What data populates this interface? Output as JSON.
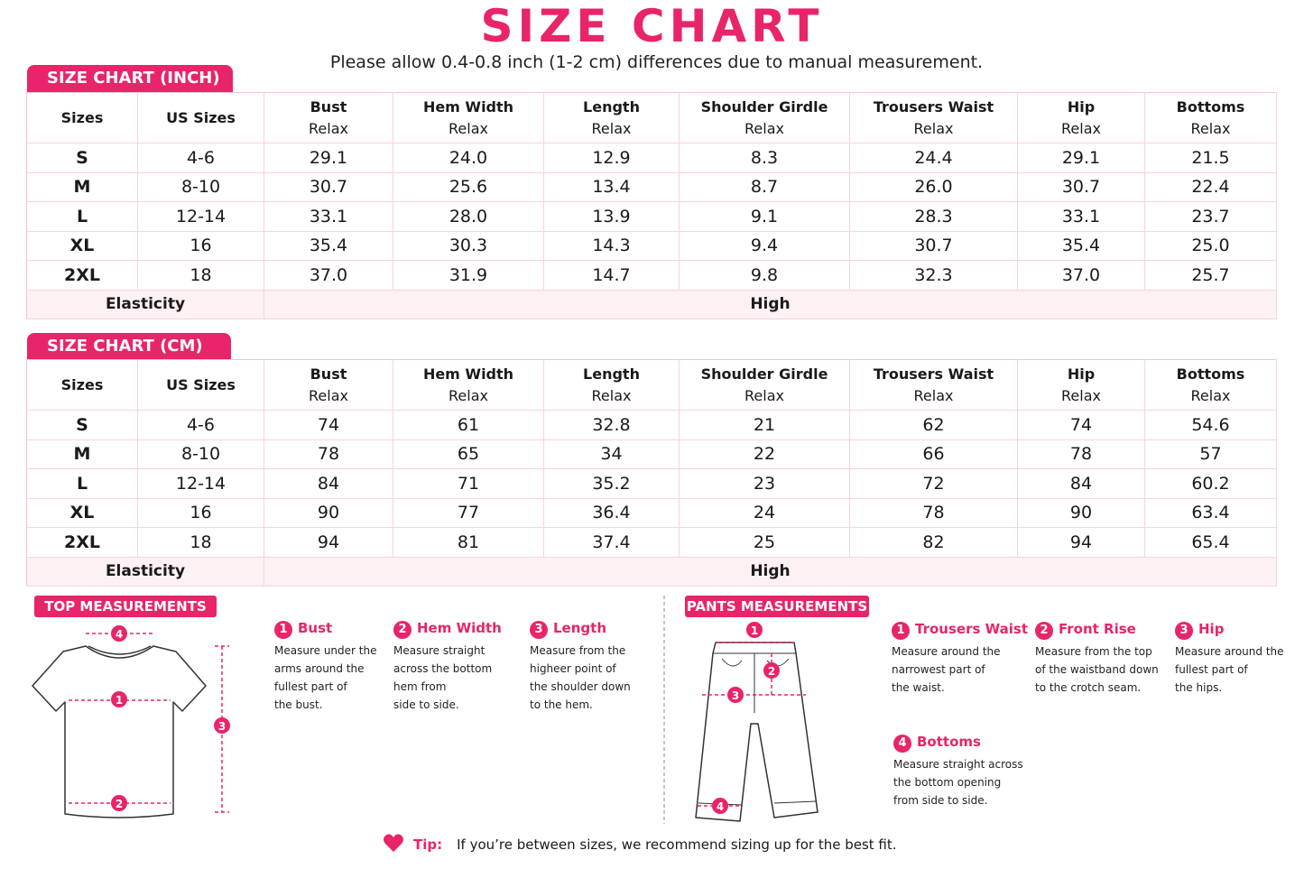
{
  "title": "SIZE CHART",
  "subtitle": "Please allow 0.4-0.8 inch (1-2 cm) differences due to manual measurement.",
  "tables": [
    {
      "label": "SIZE CHART (INCH)",
      "headers": [
        {
          "name": "Sizes"
        },
        {
          "name": "US Sizes"
        },
        {
          "name": "Bust",
          "sub": "Relax"
        },
        {
          "name": "Hem Width",
          "sub": "Relax"
        },
        {
          "name": "Length",
          "sub": "Relax"
        },
        {
          "name": "Shoulder Girdle",
          "sub": "Relax"
        },
        {
          "name": "Trousers Waist",
          "sub": "Relax"
        },
        {
          "name": "Hip",
          "sub": "Relax"
        },
        {
          "name": "Bottoms",
          "sub": "Relax"
        }
      ],
      "rows": [
        [
          "S",
          "4-6",
          "29.1",
          "24.0",
          "12.9",
          "8.3",
          "24.4",
          "29.1",
          "21.5"
        ],
        [
          "M",
          "8-10",
          "30.7",
          "25.6",
          "13.4",
          "8.7",
          "26.0",
          "30.7",
          "22.4"
        ],
        [
          "L",
          "12-14",
          "33.1",
          "28.0",
          "13.9",
          "9.1",
          "28.3",
          "33.1",
          "23.7"
        ],
        [
          "XL",
          "16",
          "35.4",
          "30.3",
          "14.3",
          "9.4",
          "30.7",
          "35.4",
          "25.0"
        ],
        [
          "2XL",
          "18",
          "37.0",
          "31.9",
          "14.7",
          "9.8",
          "32.3",
          "37.0",
          "25.7"
        ]
      ],
      "footer": {
        "label": "Elasticity",
        "value": "High"
      }
    },
    {
      "label": "SIZE CHART (CM)",
      "headers": [
        {
          "name": "Sizes"
        },
        {
          "name": "US Sizes"
        },
        {
          "name": "Bust",
          "sub": "Relax"
        },
        {
          "name": "Hem Width",
          "sub": "Relax"
        },
        {
          "name": "Length",
          "sub": "Relax"
        },
        {
          "name": "Shoulder Girdle",
          "sub": "Relax"
        },
        {
          "name": "Trousers Waist",
          "sub": "Relax"
        },
        {
          "name": "Hip",
          "sub": "Relax"
        },
        {
          "name": "Bottoms",
          "sub": "Relax"
        }
      ],
      "rows": [
        [
          "S",
          "4-6",
          "74",
          "61",
          "32.8",
          "21",
          "62",
          "74",
          "54.6"
        ],
        [
          "M",
          "8-10",
          "78",
          "65",
          "34",
          "22",
          "66",
          "78",
          "57"
        ],
        [
          "L",
          "12-14",
          "84",
          "71",
          "35.2",
          "23",
          "72",
          "84",
          "60.2"
        ],
        [
          "XL",
          "16",
          "90",
          "77",
          "36.4",
          "24",
          "78",
          "90",
          "63.4"
        ],
        [
          "2XL",
          "18",
          "94",
          "81",
          "37.4",
          "25",
          "82",
          "94",
          "65.4"
        ]
      ],
      "footer": {
        "label": "Elasticity",
        "value": "High"
      }
    }
  ],
  "top_measurements": {
    "label": "TOP MEASUREMENTS",
    "items": [
      {
        "num": "1",
        "name": "Bust",
        "lines": [
          "Measure under the",
          "arms around the",
          "fullest part of",
          "the bust."
        ]
      },
      {
        "num": "2",
        "name": "Hem Width",
        "lines": [
          "Measure straight",
          "across the bottom",
          "hem from",
          "side to side."
        ]
      },
      {
        "num": "3",
        "name": "Length",
        "lines": [
          "Measure from the",
          "higheer point of",
          "the shoulder down",
          "to the hem."
        ]
      },
      {
        "num": "4"
      }
    ]
  },
  "pants_measurements": {
    "label": "PANTS MEASUREMENTS",
    "items": [
      {
        "num": "1",
        "name": "Trousers Waist",
        "lines": [
          "Measure around the",
          "narrowest part of",
          "the waist."
        ]
      },
      {
        "num": "2",
        "name": "Front Rise",
        "lines": [
          "Measure from the top",
          "of the waistband down",
          "to the crotch seam."
        ]
      },
      {
        "num": "3",
        "name": "Hip",
        "lines": [
          "Measure around the",
          "fullest part of",
          "the hips."
        ]
      },
      {
        "num": "4",
        "name": "Bottoms",
        "lines": [
          "Measure straight across",
          "the bottom opening",
          "from side to side."
        ]
      }
    ]
  },
  "tip": {
    "label": "Tip:",
    "text": "If you’re between sizes, we recommend sizing up for the best fit."
  }
}
